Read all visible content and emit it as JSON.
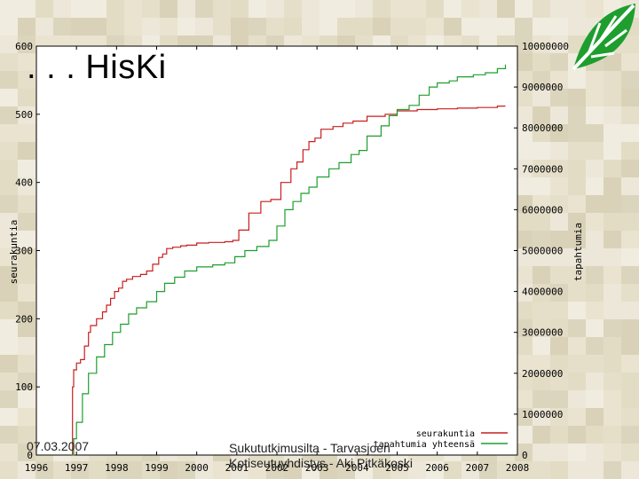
{
  "slide": {
    "title": ". . . HisKi",
    "footer_date": "07.03.2007",
    "footer_credit": "Sukututkimusilta - Tarvasjoen Kotiseutuyhdistys - Aki Pitkäkoski",
    "logo_icon": "leaf-icon",
    "accent": "#1e9e2e"
  },
  "chart_data": {
    "type": "line",
    "title": "",
    "xlabel": "",
    "ylabel": "seurakuntia",
    "y2label": "tapahtumia",
    "x_ticks": [
      "1996",
      "1997",
      "1998",
      "1999",
      "2000",
      "2001",
      "2002",
      "2003",
      "2004",
      "2005",
      "2006",
      "2007",
      "2008"
    ],
    "xlim": [
      1996,
      2008
    ],
    "ylim": [
      0,
      600
    ],
    "y_ticks": [
      "0",
      "100",
      "200",
      "300",
      "400",
      "500",
      "600"
    ],
    "y2lim": [
      0,
      10000000
    ],
    "y2_ticks": [
      "0",
      "1000000",
      "2000000",
      "3000000",
      "4000000",
      "5000000",
      "6000000",
      "7000000",
      "8000000",
      "9000000",
      "10000000"
    ],
    "grid": false,
    "legend_position": "bottom-right",
    "series": [
      {
        "name": "seurakuntia",
        "axis": "left",
        "color": "#c81e1e",
        "points": [
          [
            1996.88,
            0
          ],
          [
            1996.9,
            100
          ],
          [
            1996.93,
            125
          ],
          [
            1997.0,
            135
          ],
          [
            1997.1,
            140
          ],
          [
            1997.2,
            160
          ],
          [
            1997.3,
            180
          ],
          [
            1997.35,
            190
          ],
          [
            1997.5,
            200
          ],
          [
            1997.65,
            210
          ],
          [
            1997.75,
            220
          ],
          [
            1997.85,
            230
          ],
          [
            1997.95,
            240
          ],
          [
            1998.05,
            245
          ],
          [
            1998.15,
            255
          ],
          [
            1998.25,
            258
          ],
          [
            1998.4,
            262
          ],
          [
            1998.6,
            265
          ],
          [
            1998.75,
            270
          ],
          [
            1998.9,
            280
          ],
          [
            1999.05,
            290
          ],
          [
            1999.15,
            295
          ],
          [
            1999.25,
            303
          ],
          [
            1999.4,
            305
          ],
          [
            1999.6,
            307
          ],
          [
            1999.75,
            308
          ],
          [
            2000.0,
            311
          ],
          [
            2000.3,
            312
          ],
          [
            2000.7,
            313
          ],
          [
            2000.9,
            315
          ],
          [
            2001.05,
            330
          ],
          [
            2001.3,
            355
          ],
          [
            2001.6,
            372
          ],
          [
            2001.85,
            375
          ],
          [
            2002.1,
            400
          ],
          [
            2002.35,
            420
          ],
          [
            2002.5,
            430
          ],
          [
            2002.65,
            448
          ],
          [
            2002.8,
            460
          ],
          [
            2002.95,
            465
          ],
          [
            2003.1,
            478
          ],
          [
            2003.4,
            482
          ],
          [
            2003.65,
            487
          ],
          [
            2003.9,
            490
          ],
          [
            2004.25,
            497
          ],
          [
            2004.7,
            500
          ],
          [
            2005.0,
            505
          ],
          [
            2005.5,
            507
          ],
          [
            2006.0,
            508
          ],
          [
            2006.5,
            509
          ],
          [
            2007.0,
            510
          ],
          [
            2007.5,
            512
          ],
          [
            2007.7,
            512
          ]
        ]
      },
      {
        "name": "tapahtumia yhteensä",
        "axis": "right",
        "color": "#1e9e2e",
        "points": [
          [
            1996.9,
            0
          ],
          [
            1996.93,
            400000
          ],
          [
            1997.0,
            800000
          ],
          [
            1997.15,
            1500000
          ],
          [
            1997.3,
            2000000
          ],
          [
            1997.5,
            2400000
          ],
          [
            1997.7,
            2700000
          ],
          [
            1997.9,
            3000000
          ],
          [
            1998.1,
            3200000
          ],
          [
            1998.3,
            3450000
          ],
          [
            1998.5,
            3600000
          ],
          [
            1998.75,
            3750000
          ],
          [
            1999.0,
            4000000
          ],
          [
            1999.2,
            4200000
          ],
          [
            1999.45,
            4350000
          ],
          [
            1999.7,
            4500000
          ],
          [
            2000.0,
            4600000
          ],
          [
            2000.4,
            4650000
          ],
          [
            2000.7,
            4700000
          ],
          [
            2000.95,
            4850000
          ],
          [
            2001.2,
            5000000
          ],
          [
            2001.5,
            5100000
          ],
          [
            2001.8,
            5250000
          ],
          [
            2002.0,
            5600000
          ],
          [
            2002.2,
            6000000
          ],
          [
            2002.4,
            6200000
          ],
          [
            2002.6,
            6400000
          ],
          [
            2002.8,
            6550000
          ],
          [
            2003.0,
            6800000
          ],
          [
            2003.3,
            7000000
          ],
          [
            2003.55,
            7150000
          ],
          [
            2003.85,
            7350000
          ],
          [
            2004.05,
            7450000
          ],
          [
            2004.25,
            7800000
          ],
          [
            2004.45,
            7800000
          ],
          [
            2004.6,
            8050000
          ],
          [
            2004.8,
            8300000
          ],
          [
            2005.0,
            8450000
          ],
          [
            2005.3,
            8550000
          ],
          [
            2005.55,
            8800000
          ],
          [
            2005.8,
            9000000
          ],
          [
            2006.0,
            9100000
          ],
          [
            2006.3,
            9150000
          ],
          [
            2006.5,
            9250000
          ],
          [
            2006.9,
            9300000
          ],
          [
            2007.2,
            9350000
          ],
          [
            2007.5,
            9450000
          ],
          [
            2007.7,
            9550000
          ]
        ]
      }
    ]
  }
}
